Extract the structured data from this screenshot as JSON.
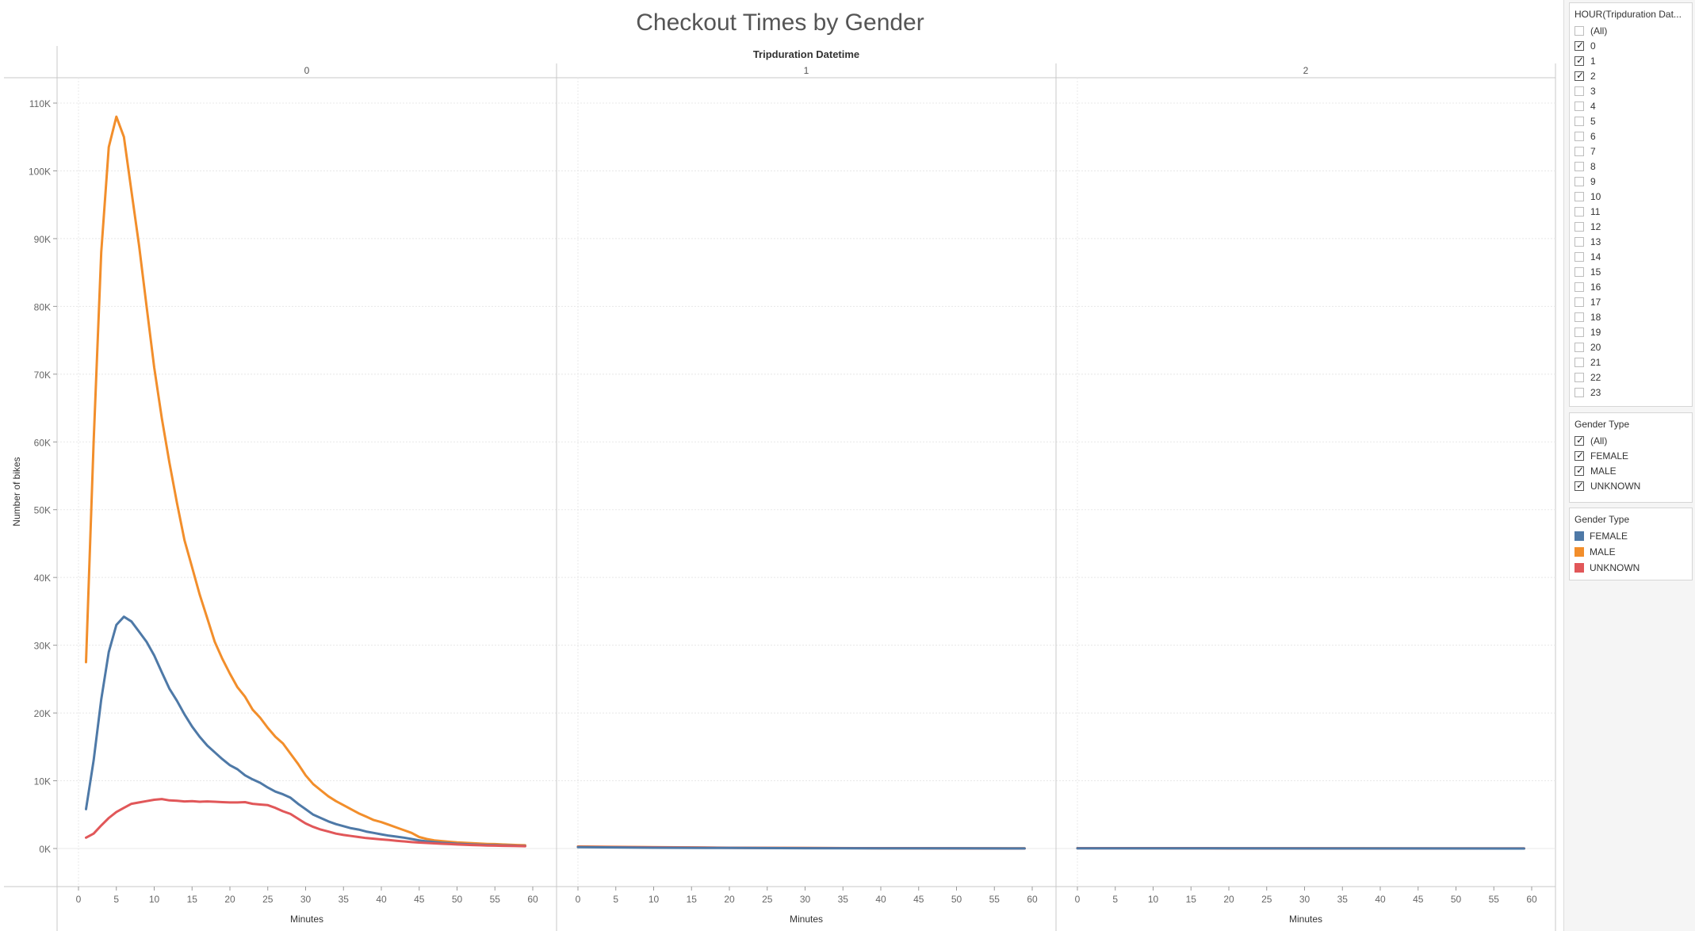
{
  "title": "Checkout Times by Gender",
  "colors": {
    "FEMALE": "#4e79a7",
    "MALE": "#f28e2b",
    "UNKNOWN": "#e15759",
    "grid": "#e8e8e8",
    "divider": "#c8c8c8"
  },
  "filter_hour": {
    "title": "HOUR(Tripduration Dat...",
    "items": [
      {
        "label": "(All)",
        "checked": false
      },
      {
        "label": "0",
        "checked": true
      },
      {
        "label": "1",
        "checked": true
      },
      {
        "label": "2",
        "checked": true
      },
      {
        "label": "3",
        "checked": false
      },
      {
        "label": "4",
        "checked": false
      },
      {
        "label": "5",
        "checked": false
      },
      {
        "label": "6",
        "checked": false
      },
      {
        "label": "7",
        "checked": false
      },
      {
        "label": "8",
        "checked": false
      },
      {
        "label": "9",
        "checked": false
      },
      {
        "label": "10",
        "checked": false
      },
      {
        "label": "11",
        "checked": false
      },
      {
        "label": "12",
        "checked": false
      },
      {
        "label": "13",
        "checked": false
      },
      {
        "label": "14",
        "checked": false
      },
      {
        "label": "15",
        "checked": false
      },
      {
        "label": "16",
        "checked": false
      },
      {
        "label": "17",
        "checked": false
      },
      {
        "label": "18",
        "checked": false
      },
      {
        "label": "19",
        "checked": false
      },
      {
        "label": "20",
        "checked": false
      },
      {
        "label": "21",
        "checked": false
      },
      {
        "label": "22",
        "checked": false
      },
      {
        "label": "23",
        "checked": false
      }
    ]
  },
  "filter_gender": {
    "title": "Gender Type",
    "items": [
      {
        "label": "(All)",
        "checked": true
      },
      {
        "label": "FEMALE",
        "checked": true
      },
      {
        "label": "MALE",
        "checked": true
      },
      {
        "label": "UNKNOWN",
        "checked": true
      }
    ]
  },
  "legend": {
    "title": "Gender Type",
    "items": [
      {
        "label": "FEMALE",
        "color": "#4e79a7"
      },
      {
        "label": "MALE",
        "color": "#f28e2b"
      },
      {
        "label": "UNKNOWN",
        "color": "#e15759"
      }
    ]
  },
  "chart_data": {
    "type": "line",
    "title": "Checkout Times by Gender",
    "column_header": "Tripduration Datetime",
    "panels": [
      "0",
      "1",
      "2"
    ],
    "xlabel": "Minutes",
    "ylabel": "Number of bikes",
    "xlim": [
      0,
      60
    ],
    "ylim": [
      0,
      110000
    ],
    "x_ticks": [
      0,
      5,
      10,
      15,
      20,
      25,
      30,
      35,
      40,
      45,
      50,
      55,
      60
    ],
    "y_ticks": [
      {
        "v": 0,
        "label": "0K"
      },
      {
        "v": 10000,
        "label": "10K"
      },
      {
        "v": 20000,
        "label": "20K"
      },
      {
        "v": 30000,
        "label": "30K"
      },
      {
        "v": 40000,
        "label": "40K"
      },
      {
        "v": 50000,
        "label": "50K"
      },
      {
        "v": 60000,
        "label": "60K"
      },
      {
        "v": 70000,
        "label": "70K"
      },
      {
        "v": 80000,
        "label": "80K"
      },
      {
        "v": 90000,
        "label": "90K"
      },
      {
        "v": 100000,
        "label": "100K"
      },
      {
        "v": 110000,
        "label": "110K"
      }
    ],
    "grid": true,
    "series": [
      {
        "name": "MALE",
        "panel": "0",
        "points": [
          [
            1,
            27500
          ],
          [
            2,
            60000
          ],
          [
            3,
            88000
          ],
          [
            4,
            103500
          ],
          [
            5,
            108000
          ],
          [
            6,
            105000
          ],
          [
            7,
            97000
          ],
          [
            8,
            89000
          ],
          [
            9,
            80000
          ],
          [
            10,
            71000
          ],
          [
            11,
            63500
          ],
          [
            12,
            57000
          ],
          [
            13,
            51000
          ],
          [
            14,
            45500
          ],
          [
            15,
            41500
          ],
          [
            16,
            37500
          ],
          [
            17,
            34000
          ],
          [
            18,
            30500
          ],
          [
            19,
            28000
          ],
          [
            20,
            25800
          ],
          [
            21,
            23800
          ],
          [
            22,
            22400
          ],
          [
            23,
            20500
          ],
          [
            24,
            19300
          ],
          [
            25,
            17800
          ],
          [
            26,
            16500
          ],
          [
            27,
            15500
          ],
          [
            28,
            14000
          ],
          [
            29,
            12500
          ],
          [
            30,
            10800
          ],
          [
            31,
            9500
          ],
          [
            32,
            8600
          ],
          [
            33,
            7700
          ],
          [
            34,
            7000
          ],
          [
            35,
            6400
          ],
          [
            36,
            5800
          ],
          [
            37,
            5200
          ],
          [
            38,
            4700
          ],
          [
            39,
            4200
          ],
          [
            40,
            3900
          ],
          [
            41,
            3500
          ],
          [
            42,
            3100
          ],
          [
            43,
            2700
          ],
          [
            44,
            2300
          ],
          [
            45,
            1700
          ],
          [
            46,
            1400
          ],
          [
            47,
            1200
          ],
          [
            48,
            1100
          ],
          [
            49,
            1000
          ],
          [
            50,
            900
          ],
          [
            51,
            850
          ],
          [
            52,
            800
          ],
          [
            53,
            720
          ],
          [
            54,
            680
          ],
          [
            55,
            650
          ],
          [
            56,
            600
          ],
          [
            57,
            560
          ],
          [
            58,
            520
          ],
          [
            59,
            480
          ]
        ]
      },
      {
        "name": "FEMALE",
        "panel": "0",
        "points": [
          [
            1,
            5800
          ],
          [
            2,
            13000
          ],
          [
            3,
            22000
          ],
          [
            4,
            29000
          ],
          [
            5,
            33000
          ],
          [
            6,
            34200
          ],
          [
            7,
            33500
          ],
          [
            8,
            32000
          ],
          [
            9,
            30500
          ],
          [
            10,
            28500
          ],
          [
            11,
            26000
          ],
          [
            12,
            23600
          ],
          [
            13,
            21800
          ],
          [
            14,
            19800
          ],
          [
            15,
            18000
          ],
          [
            16,
            16500
          ],
          [
            17,
            15200
          ],
          [
            18,
            14200
          ],
          [
            19,
            13200
          ],
          [
            20,
            12300
          ],
          [
            21,
            11700
          ],
          [
            22,
            10800
          ],
          [
            23,
            10200
          ],
          [
            24,
            9700
          ],
          [
            25,
            9000
          ],
          [
            26,
            8400
          ],
          [
            27,
            8000
          ],
          [
            28,
            7500
          ],
          [
            29,
            6600
          ],
          [
            30,
            5800
          ],
          [
            31,
            5000
          ],
          [
            32,
            4500
          ],
          [
            33,
            4000
          ],
          [
            34,
            3600
          ],
          [
            35,
            3300
          ],
          [
            36,
            3000
          ],
          [
            37,
            2800
          ],
          [
            38,
            2500
          ],
          [
            39,
            2300
          ],
          [
            40,
            2100
          ],
          [
            41,
            1900
          ],
          [
            42,
            1750
          ],
          [
            43,
            1600
          ],
          [
            44,
            1400
          ],
          [
            45,
            1200
          ],
          [
            46,
            1050
          ],
          [
            47,
            950
          ],
          [
            48,
            850
          ],
          [
            49,
            780
          ],
          [
            50,
            700
          ],
          [
            51,
            650
          ],
          [
            52,
            600
          ],
          [
            53,
            560
          ],
          [
            54,
            520
          ],
          [
            55,
            490
          ],
          [
            56,
            460
          ],
          [
            57,
            430
          ],
          [
            58,
            400
          ],
          [
            59,
            370
          ]
        ]
      },
      {
        "name": "UNKNOWN",
        "panel": "0",
        "points": [
          [
            1,
            1600
          ],
          [
            2,
            2200
          ],
          [
            3,
            3400
          ],
          [
            4,
            4500
          ],
          [
            5,
            5400
          ],
          [
            6,
            6000
          ],
          [
            7,
            6600
          ],
          [
            8,
            6800
          ],
          [
            9,
            7000
          ],
          [
            10,
            7200
          ],
          [
            11,
            7300
          ],
          [
            12,
            7100
          ],
          [
            13,
            7050
          ],
          [
            14,
            6950
          ],
          [
            15,
            7000
          ],
          [
            16,
            6900
          ],
          [
            17,
            6950
          ],
          [
            18,
            6900
          ],
          [
            19,
            6850
          ],
          [
            20,
            6800
          ],
          [
            21,
            6800
          ],
          [
            22,
            6850
          ],
          [
            23,
            6600
          ],
          [
            24,
            6500
          ],
          [
            25,
            6400
          ],
          [
            26,
            6000
          ],
          [
            27,
            5500
          ],
          [
            28,
            5100
          ],
          [
            29,
            4400
          ],
          [
            30,
            3700
          ],
          [
            31,
            3200
          ],
          [
            32,
            2800
          ],
          [
            33,
            2500
          ],
          [
            34,
            2200
          ],
          [
            35,
            2000
          ],
          [
            36,
            1850
          ],
          [
            37,
            1700
          ],
          [
            38,
            1550
          ],
          [
            39,
            1450
          ],
          [
            40,
            1350
          ],
          [
            41,
            1250
          ],
          [
            42,
            1150
          ],
          [
            43,
            1050
          ],
          [
            44,
            950
          ],
          [
            45,
            880
          ],
          [
            46,
            820
          ],
          [
            47,
            760
          ],
          [
            48,
            700
          ],
          [
            49,
            650
          ],
          [
            50,
            600
          ],
          [
            51,
            560
          ],
          [
            52,
            520
          ],
          [
            53,
            480
          ],
          [
            54,
            450
          ],
          [
            55,
            420
          ],
          [
            56,
            400
          ],
          [
            57,
            380
          ],
          [
            58,
            360
          ],
          [
            59,
            340
          ]
        ]
      },
      {
        "name": "MALE",
        "panel": "1",
        "points": [
          [
            0,
            300
          ],
          [
            10,
            200
          ],
          [
            20,
            120
          ],
          [
            30,
            80
          ],
          [
            40,
            50
          ],
          [
            50,
            30
          ],
          [
            59,
            20
          ]
        ]
      },
      {
        "name": "UNKNOWN",
        "panel": "1",
        "points": [
          [
            0,
            250
          ],
          [
            10,
            180
          ],
          [
            20,
            110
          ],
          [
            30,
            70
          ],
          [
            40,
            45
          ],
          [
            50,
            25
          ],
          [
            59,
            15
          ]
        ]
      },
      {
        "name": "FEMALE",
        "panel": "1",
        "points": [
          [
            0,
            200
          ],
          [
            10,
            120
          ],
          [
            20,
            80
          ],
          [
            30,
            50
          ],
          [
            40,
            30
          ],
          [
            50,
            20
          ],
          [
            59,
            10
          ]
        ]
      },
      {
        "name": "MALE",
        "panel": "2",
        "points": [
          [
            0,
            60
          ],
          [
            20,
            40
          ],
          [
            40,
            20
          ],
          [
            59,
            10
          ]
        ]
      },
      {
        "name": "UNKNOWN",
        "panel": "2",
        "points": [
          [
            0,
            50
          ],
          [
            20,
            30
          ],
          [
            40,
            15
          ],
          [
            59,
            8
          ]
        ]
      },
      {
        "name": "FEMALE",
        "panel": "2",
        "points": [
          [
            0,
            40
          ],
          [
            20,
            25
          ],
          [
            40,
            12
          ],
          [
            59,
            5
          ]
        ]
      }
    ]
  }
}
